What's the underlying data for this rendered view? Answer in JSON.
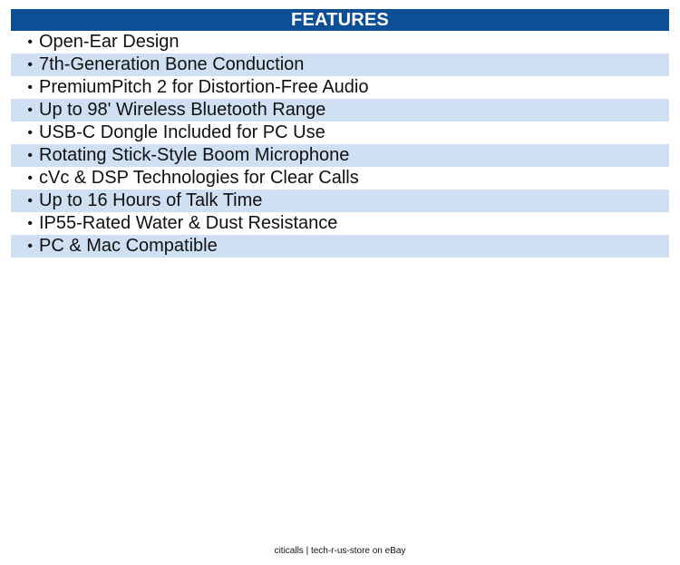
{
  "header": {
    "title": "FEATURES"
  },
  "features": [
    "Open-Ear Design",
    "7th-Generation Bone Conduction",
    "PremiumPitch 2 for Distortion-Free Audio",
    "Up to 98' Wireless Bluetooth Range",
    "USB-C Dongle Included for PC Use",
    "Rotating Stick-Style Boom Microphone",
    "cVc & DSP Technologies for Clear Calls",
    "Up to 16 Hours of Talk Time",
    "IP55-Rated Water & Dust Resistance",
    "PC & Mac Compatible"
  ],
  "bullet_char": "•",
  "footer": {
    "text": "citicalls | tech-r-us-store on eBay"
  },
  "colors": {
    "header_bg": "#0d4f96",
    "header_text": "#ffffff",
    "stripe": "#cfe0f2"
  }
}
